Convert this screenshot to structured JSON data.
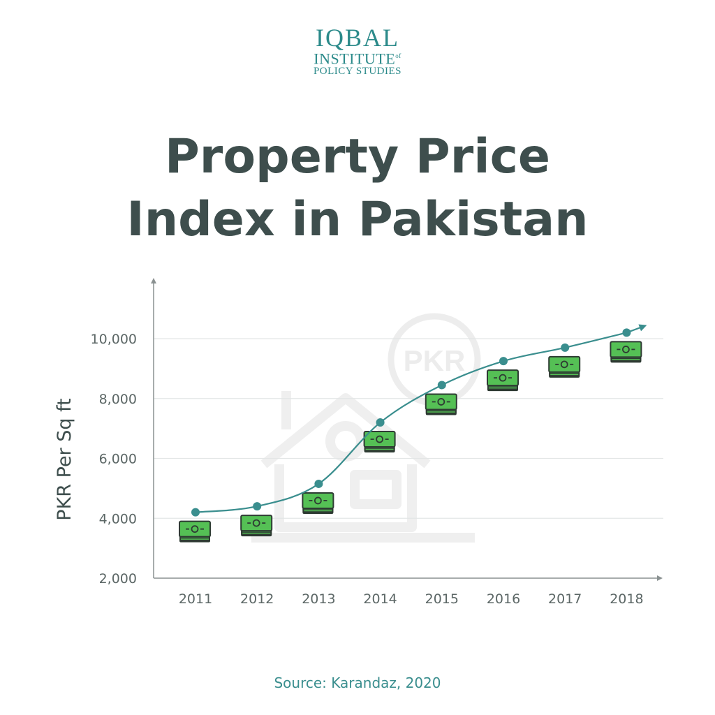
{
  "logo": {
    "line1": "IQBAL",
    "line2": "INSTITUTE",
    "line2_sup": "of",
    "line3": "POLICY STUDIES"
  },
  "title": {
    "line1": "Property Price",
    "line2": "Index in Pakistan"
  },
  "source": "Source: Karandaz, 2020",
  "watermark": {
    "label": "PKR",
    "icon": "house-icon"
  },
  "colors": {
    "title": "#3e4e4d",
    "accent": "#3a8e8e",
    "grid": "#e3e6e6",
    "money_green": "#55c055",
    "money_dark": "#2e3b33",
    "watermark": "#eeeeee"
  },
  "chart_data": {
    "type": "line",
    "ylabel": "PKR Per Sq ft",
    "xlabel": "",
    "categories": [
      "2011",
      "2012",
      "2013",
      "2014",
      "2015",
      "2016",
      "2017",
      "2018"
    ],
    "values": [
      4200,
      4400,
      5150,
      7200,
      8450,
      9250,
      9700,
      10200
    ],
    "ylim": [
      2000,
      12000
    ],
    "yticks": [
      {
        "value": 2000,
        "label": "2,000"
      },
      {
        "value": 4000,
        "label": "4,000"
      },
      {
        "value": 6000,
        "label": "6,000"
      },
      {
        "value": 8000,
        "label": "8,000"
      },
      {
        "value": 10000,
        "label": "10,000"
      }
    ],
    "grid": true,
    "legend": "none"
  }
}
